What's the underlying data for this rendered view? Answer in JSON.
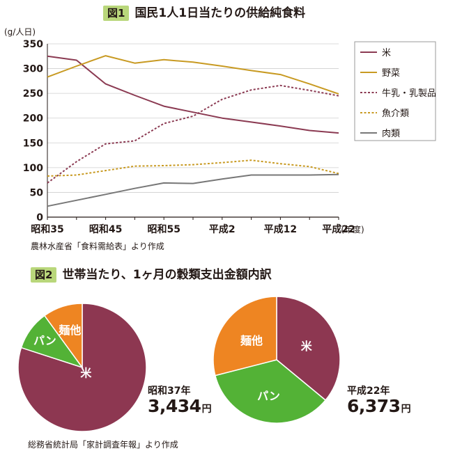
{
  "fig1": {
    "badge": "図1",
    "title": "国民1人1日当たりの供給純食料",
    "unit": "(g/人日)",
    "source": "農林水産省「食料需給表」より作成"
  },
  "fig2": {
    "badge": "図2",
    "title": "世帯当たり、1ヶ月の穀類支出金額内訳",
    "source": "総務省統計局「家計調査年報」より作成"
  },
  "chart_data": [
    {
      "type": "line",
      "title": "国民1人1日当たりの供給純食料",
      "ylabel": "(g/人日)",
      "xlabel": "(年度)",
      "ylim": [
        0,
        350
      ],
      "yticks": [
        0,
        50,
        100,
        150,
        200,
        250,
        300,
        350
      ],
      "x_tick_labels": [
        "昭和35",
        "昭和45",
        "昭和55",
        "平成2",
        "平成12",
        "平成22"
      ],
      "x": [
        "昭和35",
        "昭和40",
        "昭和45",
        "昭和50",
        "昭和55",
        "昭和60",
        "平成2",
        "平成7",
        "平成12",
        "平成17",
        "平成22"
      ],
      "grid": true,
      "legend_position": "right",
      "series": [
        {
          "name": "米",
          "color": "#8b3a52",
          "style": "solid",
          "values": [
            325,
            317,
            269,
            246,
            224,
            212,
            200,
            192,
            184,
            175,
            170
          ]
        },
        {
          "name": "野菜",
          "color": "#c89a22",
          "style": "solid",
          "values": [
            283,
            305,
            326,
            311,
            318,
            313,
            305,
            296,
            288,
            269,
            249
          ]
        },
        {
          "name": "牛乳・乳製品",
          "color": "#8b3a52",
          "style": "dashed",
          "values": [
            69,
            112,
            148,
            154,
            189,
            204,
            238,
            257,
            266,
            256,
            245
          ]
        },
        {
          "name": "魚介類",
          "color": "#c89a22",
          "style": "dashed",
          "values": [
            83,
            85,
            94,
            103,
            104,
            106,
            110,
            115,
            108,
            102,
            88
          ]
        },
        {
          "name": "肉類",
          "color": "#777777",
          "style": "solid",
          "values": [
            22,
            34,
            46,
            58,
            69,
            68,
            77,
            85,
            85,
            85,
            86
          ]
        }
      ]
    },
    {
      "type": "pie",
      "year_label": "昭和37年",
      "total": "3,434",
      "unit": "円",
      "slices": [
        {
          "label": "米",
          "value": 80,
          "color": "#8d3751",
          "show_label": true
        },
        {
          "label": "パン",
          "value": 10,
          "color": "#53b236",
          "show_label": true
        },
        {
          "label": "麺他",
          "value": 10,
          "color": "#ee8522",
          "show_label": true
        }
      ]
    },
    {
      "type": "pie",
      "year_label": "平成22年",
      "total": "6,373",
      "unit": "円",
      "slices": [
        {
          "label": "米",
          "value": 36,
          "color": "#8d3751",
          "show_label": true
        },
        {
          "label": "パン",
          "value": 35,
          "color": "#53b236",
          "show_label": true
        },
        {
          "label": "麺他",
          "value": 29,
          "color": "#ee8522",
          "show_label": true
        }
      ]
    }
  ]
}
